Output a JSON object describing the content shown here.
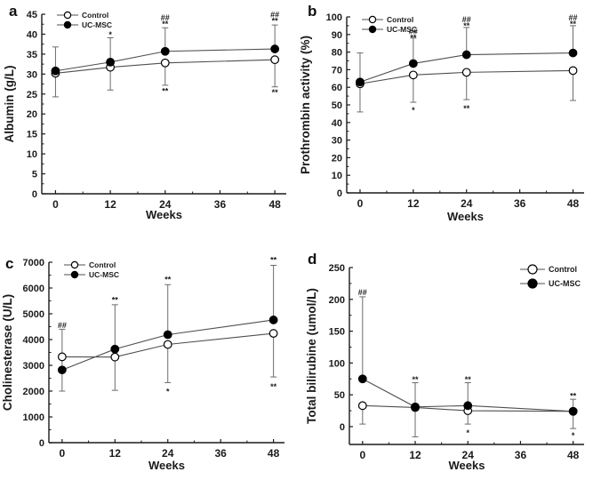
{
  "figure": {
    "background": "#ffffff",
    "text_color": "#1a1a1a",
    "series_line_color": "#4f4f4f",
    "error_bar_color": "#6b6b6b",
    "marker_stroke_color": "#000000",
    "open_marker_fill": "#ffffff",
    "filled_marker_fill": "#000000"
  },
  "chart_data": [
    {
      "id": "a",
      "panel_label": "a",
      "type": "line",
      "title": "",
      "xlabel": "Weeks",
      "ylabel": "Albumin (g/L)",
      "x": [
        0,
        12,
        24,
        48
      ],
      "xticks": [
        0,
        12,
        24,
        36,
        48
      ],
      "xminor": [
        6,
        18,
        30,
        42
      ],
      "xlim": [
        -3,
        50.5
      ],
      "ylim": [
        0,
        45
      ],
      "yticks": [
        0,
        5,
        10,
        15,
        20,
        25,
        30,
        35,
        40,
        45
      ],
      "grid": false,
      "legend_position": "top-left",
      "series": [
        {
          "name": "Control",
          "marker": "open",
          "values": [
            30.2,
            31.7,
            32.8,
            33.6
          ],
          "err_up": [
            0,
            0,
            0,
            0
          ],
          "err_down": [
            5.9,
            5.7,
            5.6,
            6.8
          ]
        },
        {
          "name": "UC-MSC",
          "marker": "filled",
          "values": [
            30.8,
            33.0,
            35.7,
            36.3
          ],
          "err_up": [
            6.0,
            6.1,
            5.9,
            6.0
          ],
          "err_down": [
            0,
            0,
            0,
            0
          ]
        }
      ],
      "annotations": [
        {
          "x": 12,
          "y": 40.3,
          "lines": [
            "*"
          ]
        },
        {
          "x": 24,
          "y": 44.6,
          "lines": [
            "##",
            "**"
          ]
        },
        {
          "x": 24,
          "y": 26.2,
          "lines": [
            "**"
          ]
        },
        {
          "x": 48,
          "y": 45.3,
          "lines": [
            "##",
            "**"
          ]
        },
        {
          "x": 48,
          "y": 25.8,
          "lines": [
            "**"
          ]
        }
      ]
    },
    {
      "id": "b",
      "panel_label": "b",
      "type": "line",
      "title": "",
      "xlabel": "Weeks",
      "ylabel": "Prothrombin activity (%)",
      "x": [
        0,
        12,
        24,
        48
      ],
      "xticks": [
        0,
        12,
        24,
        36,
        48
      ],
      "xminor": [
        6,
        18,
        30,
        42
      ],
      "xlim": [
        -3,
        50.5
      ],
      "ylim": [
        0,
        100
      ],
      "yticks": [
        0,
        10,
        20,
        30,
        40,
        50,
        60,
        70,
        80,
        90,
        100
      ],
      "grid": false,
      "legend_position": "top-left",
      "series": [
        {
          "name": "Control",
          "marker": "open",
          "values": [
            62,
            67,
            68.5,
            69.5
          ],
          "err_up": [
            0,
            0,
            0,
            0
          ],
          "err_down": [
            16,
            15.5,
            15.5,
            17
          ]
        },
        {
          "name": "UC-MSC",
          "marker": "filled",
          "values": [
            63,
            73.5,
            78.5,
            79.5
          ],
          "err_up": [
            16.5,
            14.5,
            15.5,
            15.5
          ],
          "err_down": [
            0,
            0,
            0,
            0
          ]
        }
      ],
      "annotations": [
        {
          "x": 12,
          "y": 92.8,
          "lines": [
            "##",
            "**"
          ]
        },
        {
          "x": 12,
          "y": 48.0,
          "lines": [
            "*"
          ]
        },
        {
          "x": 24,
          "y": 99.5,
          "lines": [
            "##",
            "**"
          ]
        },
        {
          "x": 24,
          "y": 49.0,
          "lines": [
            "**"
          ]
        },
        {
          "x": 48,
          "y": 100.5,
          "lines": [
            "##",
            "**"
          ]
        }
      ]
    },
    {
      "id": "c",
      "panel_label": "c",
      "type": "line",
      "title": "",
      "xlabel": "Weeks",
      "ylabel": "Cholinesterase (U/L)",
      "x": [
        0,
        12,
        24,
        48
      ],
      "xticks": [
        0,
        12,
        24,
        36,
        48
      ],
      "xminor": [
        6,
        18,
        30,
        42
      ],
      "xlim": [
        -3,
        50.5
      ],
      "ylim": [
        0,
        7000
      ],
      "yticks": [
        0,
        1000,
        2000,
        3000,
        4000,
        5000,
        6000,
        7000
      ],
      "grid": false,
      "legend_position": "top-left",
      "series": [
        {
          "name": "Control",
          "marker": "open",
          "values": [
            3330,
            3320,
            3810,
            4240
          ],
          "err_up": [
            1070,
            0,
            0,
            0
          ],
          "err_down": [
            1330,
            1290,
            1480,
            1690
          ]
        },
        {
          "name": "UC-MSC",
          "marker": "filled",
          "values": [
            2820,
            3630,
            4190,
            4760
          ],
          "err_up": [
            0,
            1720,
            1940,
            2120
          ],
          "err_down": [
            0,
            0,
            0,
            0
          ]
        }
      ],
      "annotations": [
        {
          "x": 0,
          "y": 4620,
          "lines": [
            "##"
          ]
        },
        {
          "x": 12,
          "y": 5600,
          "lines": [
            "**"
          ]
        },
        {
          "x": 24,
          "y": 6400,
          "lines": [
            "**"
          ]
        },
        {
          "x": 24,
          "y": 2050,
          "lines": [
            "*"
          ]
        },
        {
          "x": 48,
          "y": 7150,
          "lines": [
            "**"
          ]
        },
        {
          "x": 48,
          "y": 2250,
          "lines": [
            "**"
          ]
        }
      ]
    },
    {
      "id": "d",
      "panel_label": "d",
      "type": "line",
      "title": "",
      "xlabel": "Weeks",
      "ylabel": "Total bilirubine (umol/L)",
      "x": [
        0,
        12,
        24,
        48
      ],
      "xticks": [
        0,
        12,
        24,
        36,
        48
      ],
      "xminor": [
        6,
        18,
        30,
        42
      ],
      "xlim": [
        -3,
        50.5
      ],
      "ylim": [
        -28,
        250
      ],
      "yticks": [
        0,
        50,
        100,
        150,
        200,
        250
      ],
      "grid": false,
      "legend_position": "top-right",
      "series": [
        {
          "name": "Control",
          "marker": "open",
          "values": [
            33,
            30,
            25,
            24
          ],
          "err_up": [
            0,
            0,
            0,
            0
          ],
          "err_down": [
            29,
            46,
            21,
            27
          ]
        },
        {
          "name": "UC-MSC",
          "marker": "filled",
          "values": [
            75,
            31,
            33,
            24
          ],
          "err_up": [
            129,
            38,
            36,
            19
          ],
          "err_down": [
            0,
            0,
            0,
            0
          ]
        }
      ],
      "annotations": [
        {
          "x": 0,
          "y": 214,
          "lines": [
            "##"
          ]
        },
        {
          "x": 12,
          "y": 77,
          "lines": [
            "**"
          ]
        },
        {
          "x": 24,
          "y": 77,
          "lines": [
            "**"
          ]
        },
        {
          "x": 24,
          "y": -7,
          "lines": [
            "*"
          ]
        },
        {
          "x": 48,
          "y": 51,
          "lines": [
            "**"
          ]
        },
        {
          "x": 48,
          "y": -11,
          "lines": [
            "*"
          ]
        }
      ]
    }
  ]
}
